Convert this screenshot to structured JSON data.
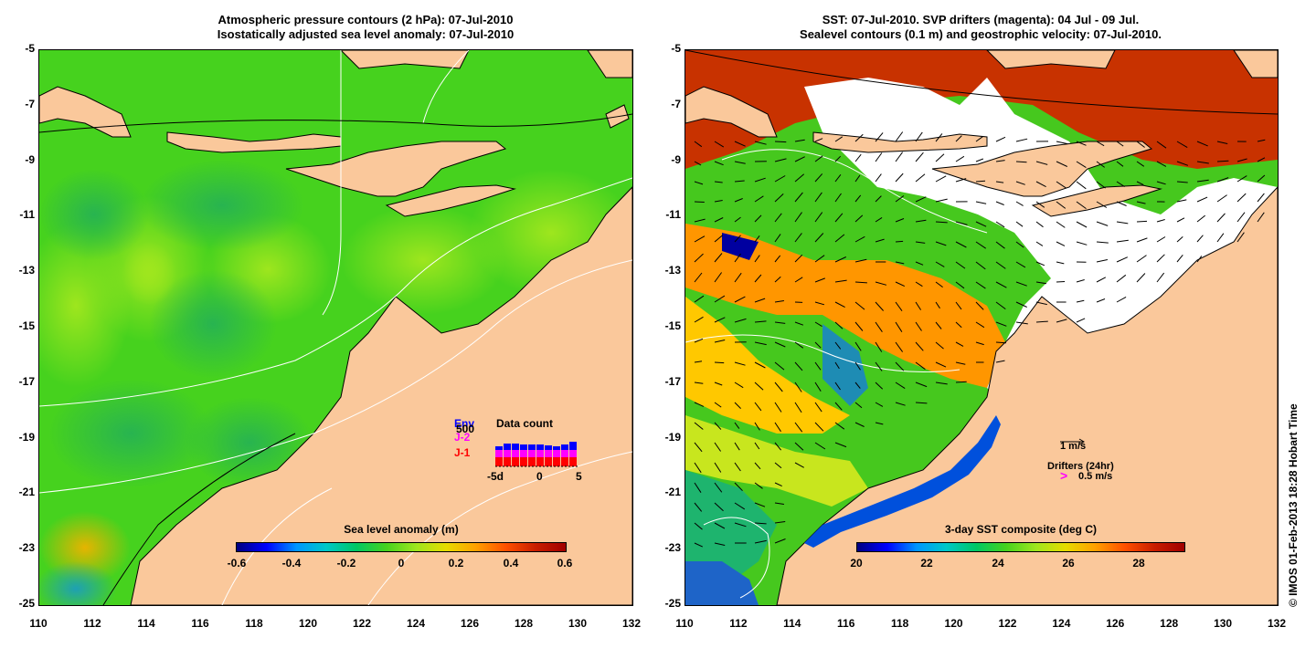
{
  "left": {
    "title1": "Atmospheric pressure contours (2 hPa): 07-Jul-2010",
    "title2": "Isostatically adjusted sea level anomaly: 07-Jul-2010",
    "colorbar_label": "Sea level anomaly (m)",
    "colorbar_ticks": [
      "-0.6",
      "-0.4",
      "-0.2",
      "0",
      "0.2",
      "0.4",
      "0.6"
    ],
    "data_count": {
      "title": "Data count",
      "env_label": "Env",
      "count_label": "500",
      "j2_label": "J-2",
      "j1_label": "J-1",
      "x_ticks": [
        "-5d",
        "0",
        "5"
      ],
      "colors": {
        "env": "#0000ff",
        "j2": "#ff00ff",
        "j1": "#ff0000"
      }
    }
  },
  "right": {
    "title1": "SST: 07-Jul-2010. SVP drifters (magenta): 04 Jul - 09 Jul.",
    "title2": "Sealevel contours (0.1 m) and geostrophic velocity: 07-Jul-2010.",
    "colorbar_label": "3-day SST composite (deg C)",
    "colorbar_ticks": [
      "20",
      "22",
      "24",
      "26",
      "28"
    ],
    "velocity_scale": "1 m/s",
    "drifters_label": "Drifters (24hr)",
    "drifters_scale": "0.5 m/s"
  },
  "y_ticks": [
    "-5",
    "-7",
    "-9",
    "-11",
    "-13",
    "-15",
    "-17",
    "-19",
    "-21",
    "-23",
    "-25"
  ],
  "x_ticks": [
    "110",
    "112",
    "114",
    "116",
    "118",
    "120",
    "122",
    "124",
    "126",
    "128",
    "130",
    "132"
  ],
  "copyright": "© IMOS 01-Feb-2013 18:28 Hobart Time",
  "colors": {
    "land": "#fac89b",
    "sla_mid": "#46d21e",
    "sst_warm": "#c83200",
    "no_data": "#ffffff"
  }
}
